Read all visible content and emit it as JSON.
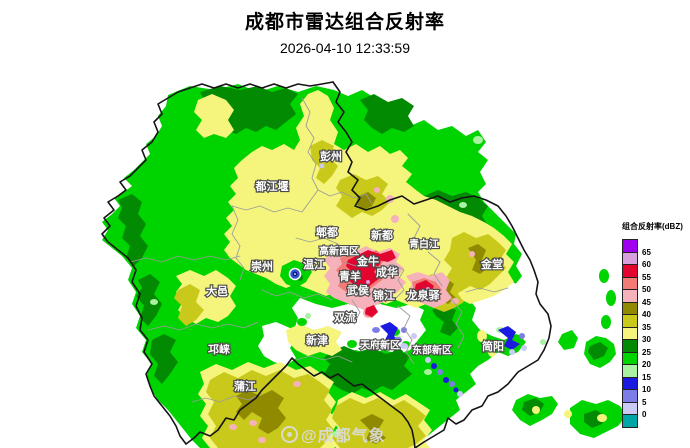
{
  "header": {
    "title": "成都市雷达组合反射率",
    "timestamp": "2026-04-10 12:33:59"
  },
  "legend": {
    "title": "组合反射率(dBZ)",
    "items": [
      {
        "dbz": "65",
        "label": "65"
      },
      {
        "dbz": "60",
        "label": "60"
      },
      {
        "dbz": "55",
        "label": "55"
      },
      {
        "dbz": "50",
        "label": "50"
      },
      {
        "dbz": "45",
        "label": "45"
      },
      {
        "dbz": "40",
        "label": "40"
      },
      {
        "dbz": "35",
        "label": "35"
      },
      {
        "dbz": "30",
        "label": "30"
      },
      {
        "dbz": "25",
        "label": "25"
      },
      {
        "dbz": "20",
        "label": "20"
      },
      {
        "dbz": "15",
        "label": "15"
      },
      {
        "dbz": "10",
        "label": "10"
      },
      {
        "dbz": "5",
        "label": "5"
      },
      {
        "dbz": "0",
        "label": "0"
      },
      {
        "dbz": "-5",
        "label": ""
      }
    ],
    "palette": {
      "65": "#A000F0",
      "60": "#D8A0DC",
      "55": "#E20530",
      "50": "#F27B76",
      "45": "#F6B2BA",
      "40": "#8F8A00",
      "35": "#C9C91B",
      "30": "#F5F57E",
      "25": "#028A02",
      "20": "#00D400",
      "15": "#AAF2A2",
      "10": "#1A1AE0",
      "5": "#7D7DE8",
      "0": "#CACAF5",
      "-5": "#00A5A5"
    }
  },
  "map": {
    "labels": [
      "彭州",
      "都江堰",
      "郫都",
      "新都",
      "青白江",
      "金堂",
      "崇州",
      "温江",
      "高新西区",
      "金牛",
      "青羊",
      "成华",
      "武侯",
      "锦江",
      "龙泉驿",
      "大邑",
      "双流",
      "新津",
      "天府新区",
      "东部新区",
      "邛崃",
      "蒲江",
      "简阳"
    ]
  },
  "watermark": {
    "text": "@成都气象"
  }
}
